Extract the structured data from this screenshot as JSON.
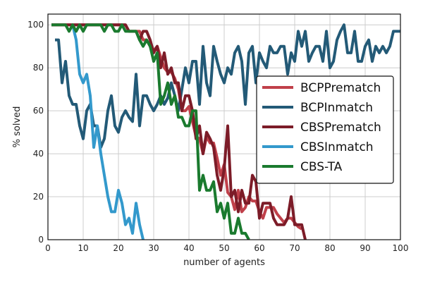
{
  "chart_data": {
    "type": "line",
    "title": "",
    "xlabel": "number of agents",
    "ylabel": "% solved",
    "xlim": [
      0,
      100
    ],
    "ylim": [
      0,
      105
    ],
    "xticks": [
      0,
      10,
      20,
      30,
      40,
      50,
      60,
      70,
      80,
      90,
      100
    ],
    "yticks": [
      0,
      20,
      40,
      60,
      80,
      100
    ],
    "grid": true,
    "legend_position": "right",
    "series": [
      {
        "name": "BCPPrematch",
        "color": "#c0404a",
        "points": [
          [
            1,
            100
          ],
          [
            5,
            100
          ],
          [
            10,
            100
          ],
          [
            15,
            100
          ],
          [
            20,
            100
          ],
          [
            22,
            100
          ],
          [
            23,
            97
          ],
          [
            25,
            97
          ],
          [
            26,
            97
          ],
          [
            27,
            93
          ],
          [
            28,
            93
          ],
          [
            29,
            90
          ],
          [
            30,
            88
          ],
          [
            31,
            90
          ],
          [
            32,
            85
          ],
          [
            33,
            80
          ],
          [
            34,
            78
          ],
          [
            35,
            78
          ],
          [
            36,
            75
          ],
          [
            37,
            70
          ],
          [
            38,
            60
          ],
          [
            39,
            60
          ],
          [
            40,
            62
          ],
          [
            41,
            55
          ],
          [
            42,
            48
          ],
          [
            43,
            47
          ],
          [
            44,
            40
          ],
          [
            45,
            48
          ],
          [
            46,
            45
          ],
          [
            47,
            45
          ],
          [
            48,
            38
          ],
          [
            49,
            30
          ],
          [
            50,
            35
          ],
          [
            51,
            22
          ],
          [
            52,
            20
          ],
          [
            53,
            14
          ],
          [
            54,
            23
          ],
          [
            55,
            13
          ],
          [
            56,
            15
          ],
          [
            57,
            20
          ],
          [
            58,
            18
          ],
          [
            59,
            18
          ],
          [
            60,
            13
          ],
          [
            61,
            10
          ],
          [
            62,
            15
          ],
          [
            63,
            15
          ],
          [
            64,
            15
          ],
          [
            65,
            12
          ],
          [
            66,
            10
          ],
          [
            67,
            8
          ],
          [
            68,
            10
          ],
          [
            69,
            10
          ],
          [
            70,
            8
          ],
          [
            71,
            6
          ],
          [
            72,
            5
          ]
        ]
      },
      {
        "name": "BCPInmatch",
        "color": "#235a77",
        "points": [
          [
            2,
            93
          ],
          [
            3,
            93
          ],
          [
            4,
            73
          ],
          [
            5,
            83
          ],
          [
            6,
            67
          ],
          [
            7,
            63
          ],
          [
            8,
            63
          ],
          [
            9,
            53
          ],
          [
            10,
            47
          ],
          [
            11,
            60
          ],
          [
            12,
            63
          ],
          [
            13,
            53
          ],
          [
            14,
            53
          ],
          [
            15,
            43
          ],
          [
            16,
            47
          ],
          [
            17,
            60
          ],
          [
            18,
            67
          ],
          [
            19,
            53
          ],
          [
            20,
            50
          ],
          [
            21,
            57
          ],
          [
            22,
            60
          ],
          [
            23,
            57
          ],
          [
            24,
            55
          ],
          [
            25,
            77
          ],
          [
            26,
            53
          ],
          [
            27,
            67
          ],
          [
            28,
            67
          ],
          [
            29,
            63
          ],
          [
            30,
            60
          ],
          [
            31,
            63
          ],
          [
            32,
            67
          ],
          [
            33,
            63
          ],
          [
            34,
            66
          ],
          [
            35,
            73
          ],
          [
            36,
            67
          ],
          [
            37,
            60
          ],
          [
            38,
            70
          ],
          [
            39,
            80
          ],
          [
            40,
            73
          ],
          [
            41,
            83
          ],
          [
            42,
            83
          ],
          [
            43,
            63
          ],
          [
            44,
            90
          ],
          [
            45,
            73
          ],
          [
            46,
            67
          ],
          [
            47,
            90
          ],
          [
            48,
            83
          ],
          [
            49,
            77
          ],
          [
            50,
            73
          ],
          [
            51,
            80
          ],
          [
            52,
            77
          ],
          [
            53,
            87
          ],
          [
            54,
            90
          ],
          [
            55,
            83
          ],
          [
            56,
            63
          ],
          [
            57,
            87
          ],
          [
            58,
            90
          ],
          [
            59,
            73
          ],
          [
            60,
            87
          ],
          [
            61,
            83
          ],
          [
            62,
            80
          ],
          [
            63,
            90
          ],
          [
            64,
            87
          ],
          [
            65,
            87
          ],
          [
            66,
            90
          ],
          [
            67,
            90
          ],
          [
            68,
            77
          ],
          [
            69,
            87
          ],
          [
            70,
            83
          ],
          [
            71,
            97
          ],
          [
            72,
            90
          ],
          [
            73,
            97
          ],
          [
            74,
            83
          ],
          [
            75,
            87
          ],
          [
            76,
            90
          ],
          [
            77,
            90
          ],
          [
            78,
            83
          ],
          [
            79,
            97
          ],
          [
            80,
            80
          ],
          [
            81,
            83
          ],
          [
            82,
            93
          ],
          [
            83,
            97
          ],
          [
            84,
            100
          ],
          [
            85,
            87
          ],
          [
            86,
            87
          ],
          [
            87,
            97
          ],
          [
            88,
            83
          ],
          [
            89,
            83
          ],
          [
            90,
            90
          ],
          [
            91,
            93
          ],
          [
            92,
            83
          ],
          [
            93,
            90
          ],
          [
            94,
            87
          ],
          [
            95,
            90
          ],
          [
            96,
            87
          ],
          [
            97,
            90
          ],
          [
            98,
            97
          ],
          [
            99,
            97
          ],
          [
            100,
            97
          ]
        ]
      },
      {
        "name": "CBSPrematch",
        "color": "#7c1c28",
        "points": [
          [
            1,
            100
          ],
          [
            5,
            100
          ],
          [
            10,
            100
          ],
          [
            15,
            100
          ],
          [
            20,
            100
          ],
          [
            22,
            100
          ],
          [
            23,
            97
          ],
          [
            25,
            97
          ],
          [
            26,
            93
          ],
          [
            27,
            97
          ],
          [
            28,
            97
          ],
          [
            29,
            93
          ],
          [
            30,
            87
          ],
          [
            31,
            90
          ],
          [
            32,
            80
          ],
          [
            33,
            87
          ],
          [
            34,
            77
          ],
          [
            35,
            80
          ],
          [
            36,
            73
          ],
          [
            37,
            73
          ],
          [
            38,
            60
          ],
          [
            39,
            67
          ],
          [
            40,
            67
          ],
          [
            41,
            60
          ],
          [
            42,
            47
          ],
          [
            43,
            53
          ],
          [
            44,
            40
          ],
          [
            45,
            50
          ],
          [
            46,
            47
          ],
          [
            47,
            43
          ],
          [
            48,
            30
          ],
          [
            49,
            23
          ],
          [
            50,
            33
          ],
          [
            51,
            53
          ],
          [
            52,
            20
          ],
          [
            53,
            23
          ],
          [
            54,
            13
          ],
          [
            55,
            23
          ],
          [
            56,
            17
          ],
          [
            57,
            17
          ],
          [
            58,
            30
          ],
          [
            59,
            27
          ],
          [
            60,
            10
          ],
          [
            61,
            17
          ],
          [
            62,
            17
          ],
          [
            63,
            17
          ],
          [
            64,
            10
          ],
          [
            65,
            7
          ],
          [
            66,
            7
          ],
          [
            67,
            7
          ],
          [
            68,
            10
          ],
          [
            69,
            20
          ],
          [
            70,
            7
          ],
          [
            71,
            7
          ],
          [
            72,
            7
          ],
          [
            73,
            0
          ]
        ]
      },
      {
        "name": "CBSInmatch",
        "color": "#3399cc",
        "points": [
          [
            7,
            100
          ],
          [
            8,
            93
          ],
          [
            9,
            77
          ],
          [
            10,
            73
          ],
          [
            11,
            77
          ],
          [
            12,
            67
          ],
          [
            13,
            43
          ],
          [
            14,
            53
          ],
          [
            15,
            40
          ],
          [
            16,
            30
          ],
          [
            17,
            20
          ],
          [
            18,
            13
          ],
          [
            19,
            13
          ],
          [
            20,
            23
          ],
          [
            21,
            17
          ],
          [
            22,
            7
          ],
          [
            23,
            10
          ],
          [
            24,
            3
          ],
          [
            25,
            17
          ],
          [
            26,
            7
          ],
          [
            27,
            0
          ]
        ]
      },
      {
        "name": "CBS-TA",
        "color": "#1a7a2e",
        "points": [
          [
            1,
            100
          ],
          [
            5,
            100
          ],
          [
            6,
            97
          ],
          [
            7,
            100
          ],
          [
            8,
            97
          ],
          [
            9,
            100
          ],
          [
            10,
            97
          ],
          [
            11,
            100
          ],
          [
            15,
            100
          ],
          [
            16,
            97
          ],
          [
            17,
            100
          ],
          [
            18,
            100
          ],
          [
            19,
            97
          ],
          [
            20,
            97
          ],
          [
            21,
            100
          ],
          [
            22,
            97
          ],
          [
            23,
            97
          ],
          [
            24,
            97
          ],
          [
            25,
            97
          ],
          [
            26,
            93
          ],
          [
            27,
            90
          ],
          [
            28,
            93
          ],
          [
            29,
            90
          ],
          [
            30,
            83
          ],
          [
            31,
            87
          ],
          [
            32,
            63
          ],
          [
            33,
            67
          ],
          [
            34,
            73
          ],
          [
            35,
            63
          ],
          [
            36,
            67
          ],
          [
            37,
            57
          ],
          [
            38,
            57
          ],
          [
            39,
            53
          ],
          [
            40,
            53
          ],
          [
            41,
            60
          ],
          [
            42,
            60
          ],
          [
            43,
            23
          ],
          [
            44,
            30
          ],
          [
            45,
            23
          ],
          [
            46,
            23
          ],
          [
            47,
            27
          ],
          [
            48,
            13
          ],
          [
            49,
            17
          ],
          [
            50,
            10
          ],
          [
            51,
            17
          ],
          [
            52,
            3
          ],
          [
            53,
            3
          ],
          [
            54,
            10
          ],
          [
            55,
            3
          ],
          [
            56,
            3
          ],
          [
            57,
            0
          ]
        ]
      }
    ]
  }
}
